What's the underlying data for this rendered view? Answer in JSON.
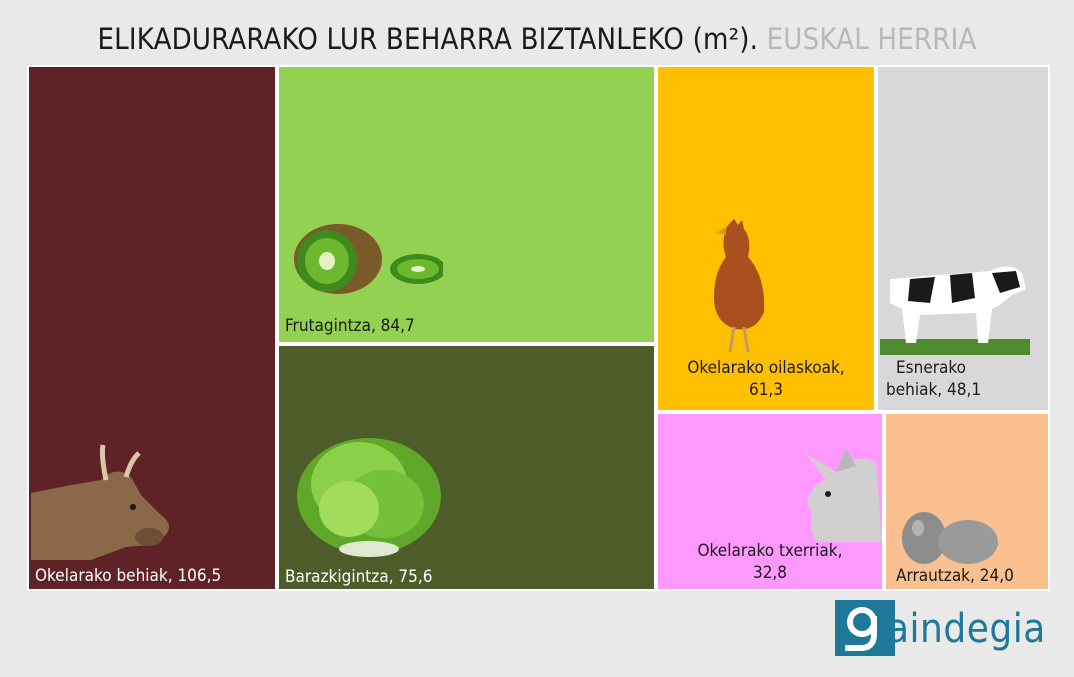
{
  "header": {
    "title": "ELIKADURARAKO LUR BEHARRA BIZTANLEKO (m²).",
    "subtitle": "EUSKAL HERRIA"
  },
  "chart_data": {
    "type": "treemap",
    "title": "ELIKADURARAKO LUR BEHARRA BIZTANLEKO (m²). EUSKAL HERRIA",
    "items": [
      {
        "name": "Okelarako behiak",
        "value": 106.5,
        "label": "Okelarako behiak, 106,5",
        "color": "#5f2226",
        "text_color": "#ffffff",
        "icon": "cow-icon"
      },
      {
        "name": "Frutagintza",
        "value": 84.7,
        "label": "Frutagintza, 84,7",
        "color": "#93d152",
        "text_color": "#1a1a1a",
        "icon": "kiwi-icon"
      },
      {
        "name": "Barazkigintza",
        "value": 75.6,
        "label": "Barazkigintza, 75,6",
        "color": "#4e5c2a",
        "text_color": "#ffffff",
        "icon": "lettuce-icon"
      },
      {
        "name": "Okelarako oilaskoak",
        "value": 61.3,
        "label": "Okelarako oilaskoak, 61,3",
        "label_lines": [
          "Okelarako oilaskoak,",
          "61,3"
        ],
        "color": "#ffc000",
        "text_color": "#1a1a1a",
        "icon": "chicken-icon"
      },
      {
        "name": "Esnerako behiak",
        "value": 48.1,
        "label": "Esnerako behiak, 48,1",
        "label_lines": [
          "Esnerako",
          "behiak, 48,1"
        ],
        "color": "#d8d8d8",
        "text_color": "#1a1a1a",
        "icon": "dairy-cow-icon"
      },
      {
        "name": "Okelarako txerriak",
        "value": 32.8,
        "label": "Okelarako txerriak, 32,8",
        "label_lines": [
          "Okelarako txerriak,",
          "32,8"
        ],
        "color": "#ff99ff",
        "text_color": "#1a1a1a",
        "icon": "pig-icon"
      },
      {
        "name": "Arrautzak",
        "value": 24.0,
        "label": "Arrautzak, 24,0",
        "color": "#fac090",
        "text_color": "#1a1a1a",
        "icon": "eggs-icon"
      }
    ]
  },
  "logo": {
    "text": "aindegia",
    "letter": "g"
  }
}
